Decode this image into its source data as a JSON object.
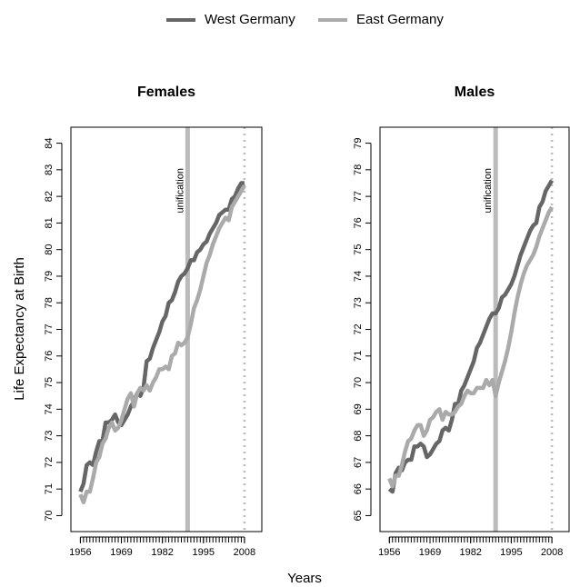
{
  "ylabel": "Life Expectancy at Birth",
  "xlabel": "Years",
  "legend": [
    "West Germany",
    "East Germany"
  ],
  "chart_data": [
    {
      "type": "line",
      "title": "Females",
      "x": [
        1956,
        1957,
        1958,
        1959,
        1960,
        1961,
        1962,
        1963,
        1964,
        1965,
        1966,
        1967,
        1968,
        1969,
        1970,
        1971,
        1972,
        1973,
        1974,
        1975,
        1976,
        1977,
        1978,
        1979,
        1980,
        1981,
        1982,
        1983,
        1984,
        1985,
        1986,
        1987,
        1988,
        1989,
        1990,
        1991,
        1992,
        1993,
        1994,
        1995,
        1996,
        1997,
        1998,
        1999,
        2000,
        2001,
        2002,
        2003,
        2004,
        2005,
        2006,
        2007,
        2008
      ],
      "series": [
        {
          "color": "#666666",
          "values": [
            70.9,
            71.2,
            71.9,
            72.0,
            71.9,
            72.4,
            72.8,
            72.8,
            73.5,
            73.5,
            73.6,
            73.8,
            73.5,
            73.4,
            73.6,
            73.8,
            74.1,
            74.3,
            74.6,
            74.5,
            74.8,
            75.8,
            75.9,
            76.3,
            76.6,
            76.9,
            77.3,
            77.5,
            78.0,
            78.1,
            78.4,
            78.8,
            79.0,
            79.1,
            79.3,
            79.6,
            79.6,
            79.9,
            80.0,
            80.2,
            80.3,
            80.6,
            80.8,
            81.0,
            81.3,
            81.4,
            81.5,
            81.5,
            81.9,
            82.0,
            82.3,
            82.5,
            82.5
          ]
        },
        {
          "color": "#aaaaaa",
          "values": [
            70.8,
            70.5,
            70.9,
            70.9,
            71.4,
            72.0,
            72.2,
            72.7,
            72.9,
            73.3,
            73.5,
            73.2,
            73.3,
            73.6,
            74.0,
            74.4,
            74.6,
            74.1,
            74.6,
            74.8,
            74.7,
            74.9,
            74.7,
            75.0,
            75.2,
            75.5,
            75.5,
            75.6,
            75.5,
            76.0,
            76.1,
            76.5,
            76.4,
            76.5,
            76.7,
            77.2,
            77.8,
            78.1,
            78.5,
            79.0,
            79.5,
            79.8,
            80.2,
            80.5,
            80.8,
            81.0,
            81.2,
            81.1,
            81.6,
            81.8,
            82.0,
            82.2,
            82.4
          ]
        }
      ],
      "xlim": [
        1953,
        2013.5
      ],
      "xticks": [
        1956,
        1969,
        1982,
        1995,
        2008
      ],
      "ylim": [
        69.4,
        84.6
      ],
      "yticks": [
        70,
        71,
        72,
        73,
        74,
        75,
        76,
        77,
        78,
        79,
        80,
        81,
        82,
        83,
        84
      ],
      "vlines": [
        {
          "x": 1990,
          "label": "unification",
          "style": "solid",
          "color": "#bbbbbb"
        },
        {
          "x": 2008,
          "style": "dotted",
          "color": "#bbbbbb"
        }
      ]
    },
    {
      "type": "line",
      "title": "Males",
      "x": [
        1956,
        1957,
        1958,
        1959,
        1960,
        1961,
        1962,
        1963,
        1964,
        1965,
        1966,
        1967,
        1968,
        1969,
        1970,
        1971,
        1972,
        1973,
        1974,
        1975,
        1976,
        1977,
        1978,
        1979,
        1980,
        1981,
        1982,
        1983,
        1984,
        1985,
        1986,
        1987,
        1988,
        1989,
        1990,
        1991,
        1992,
        1993,
        1994,
        1995,
        1996,
        1997,
        1998,
        1999,
        2000,
        2001,
        2002,
        2003,
        2004,
        2005,
        2006,
        2007,
        2008
      ],
      "series": [
        {
          "color": "#666666",
          "values": [
            66.0,
            65.9,
            66.6,
            66.8,
            66.7,
            67.0,
            67.1,
            67.1,
            67.6,
            67.6,
            67.7,
            67.6,
            67.2,
            67.3,
            67.5,
            67.7,
            67.8,
            68.2,
            68.3,
            68.2,
            68.6,
            69.2,
            69.2,
            69.7,
            69.9,
            70.2,
            70.5,
            70.8,
            71.3,
            71.5,
            71.8,
            72.1,
            72.4,
            72.6,
            72.6,
            72.8,
            73.2,
            73.3,
            73.5,
            73.7,
            74.0,
            74.4,
            74.8,
            75.1,
            75.4,
            75.7,
            75.9,
            76.0,
            76.6,
            76.8,
            77.2,
            77.4,
            77.6
          ]
        },
        {
          "color": "#aaaaaa",
          "values": [
            66.4,
            66.1,
            66.5,
            66.5,
            66.9,
            67.4,
            67.8,
            67.9,
            68.2,
            68.4,
            68.4,
            68.0,
            68.2,
            68.6,
            68.7,
            68.9,
            69.0,
            68.6,
            68.9,
            68.8,
            68.8,
            68.9,
            69.1,
            69.2,
            69.5,
            69.7,
            69.6,
            69.6,
            69.8,
            69.8,
            69.8,
            70.1,
            69.9,
            70.1,
            69.5,
            70.0,
            70.4,
            70.8,
            71.3,
            71.9,
            72.6,
            73.2,
            73.7,
            74.1,
            74.4,
            74.6,
            74.8,
            75.1,
            75.5,
            75.8,
            76.1,
            76.4,
            76.6
          ]
        }
      ],
      "xlim": [
        1953,
        2013.5
      ],
      "xticks": [
        1956,
        1969,
        1982,
        1995,
        2008
      ],
      "ylim": [
        64.4,
        79.6
      ],
      "yticks": [
        65,
        66,
        67,
        68,
        69,
        70,
        71,
        72,
        73,
        74,
        75,
        76,
        77,
        78,
        79
      ],
      "vlines": [
        {
          "x": 1990,
          "label": "unification",
          "style": "solid",
          "color": "#bbbbbb"
        },
        {
          "x": 2008,
          "style": "dotted",
          "color": "#bbbbbb"
        }
      ]
    }
  ]
}
